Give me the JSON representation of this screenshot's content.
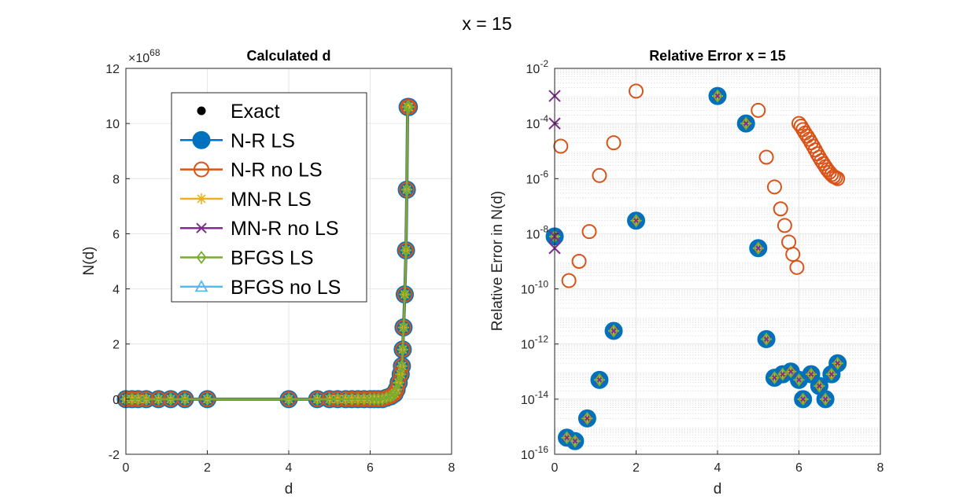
{
  "suptitle": "x = 15",
  "legend": {
    "placement": "top-left inside left plot",
    "entries": [
      "Exact",
      "N-R LS",
      "N-R no LS",
      "MN-R LS",
      "MN-R no LS",
      "BFGS LS",
      "BFGS no LS"
    ]
  },
  "colors": {
    "exact": "#000000",
    "nr_ls": "#0072BD",
    "nr_nols": "#D95319",
    "mnr_ls": "#EDB120",
    "mnr_nols": "#7E2F8E",
    "bfgs_ls": "#77AC30",
    "bfgs_nols": "#4DBEEE",
    "grid": "#e6e6e6",
    "axes": "#262626"
  },
  "chart_data": [
    {
      "type": "line",
      "title": "Calculated d",
      "xlabel": "d",
      "ylabel": "N(d)",
      "exponent_label": "×10",
      "exponent_power": "68",
      "xlim": [
        0,
        8
      ],
      "ylim": [
        -2,
        12
      ],
      "xticks": [
        0,
        2,
        4,
        6,
        8
      ],
      "yticks": [
        -2,
        0,
        2,
        4,
        6,
        8,
        10,
        12
      ],
      "grid": true,
      "x": [
        0,
        0.15,
        0.3,
        0.5,
        0.8,
        1.1,
        1.45,
        2,
        4,
        4.7,
        5,
        5.2,
        5.4,
        5.55,
        5.7,
        5.85,
        6,
        6.1,
        6.2,
        6.3,
        6.4,
        6.5,
        6.55,
        6.6,
        6.65,
        6.7,
        6.75,
        6.78,
        6.8,
        6.82,
        6.85,
        6.88,
        6.9,
        6.92,
        6.94,
        6.95
      ],
      "series": [
        {
          "name": "N-R LS",
          "y": [
            0,
            0,
            0,
            0,
            0,
            0,
            0,
            0,
            0,
            0,
            0,
            0,
            0,
            0,
            0,
            0,
            0,
            0,
            0,
            0,
            0.05,
            0.1,
            0.15,
            0.2,
            0.35,
            0.6,
            0.9,
            1.2,
            1.8,
            2.6,
            3.8,
            5.4,
            7.6,
            10.6,
            10.6,
            10.6
          ]
        },
        {
          "name": "N-R no LS",
          "y": [
            0,
            0,
            0,
            0,
            0,
            0,
            0,
            0,
            0,
            0,
            0,
            0,
            0,
            0,
            0,
            0,
            0,
            0,
            0,
            0,
            0.05,
            0.1,
            0.15,
            0.2,
            0.35,
            0.6,
            0.9,
            1.2,
            1.8,
            2.6,
            3.8,
            5.4,
            7.6,
            10.6,
            10.6,
            10.6
          ]
        },
        {
          "name": "BFGS LS",
          "y": [
            0,
            0,
            0,
            0,
            0,
            0,
            0,
            0,
            0,
            0,
            0,
            0,
            0,
            0,
            0,
            0,
            0,
            0,
            0,
            0,
            0.05,
            0.1,
            0.15,
            0.2,
            0.35,
            0.6,
            0.9,
            1.2,
            1.8,
            2.6,
            3.8,
            5.4,
            7.6,
            10.6,
            10.6,
            10.6
          ]
        }
      ]
    },
    {
      "type": "scatter",
      "title": "Relative Error x = 15",
      "xlabel": "d",
      "ylabel": "Relative Error in N(d)",
      "yscale": "log",
      "xlim": [
        0,
        8
      ],
      "ylim": [
        1e-16,
        0.01
      ],
      "xticks": [
        0,
        2,
        4,
        6,
        8
      ],
      "yticks": [
        "-16",
        "-14",
        "-12",
        "-10",
        "-8",
        "-6",
        "-4",
        "-2"
      ],
      "ytick_base": "10",
      "grid": true,
      "minor_grid": true,
      "series": [
        {
          "name": "N-R LS",
          "x": [
            0,
            0.3,
            0.5,
            0.8,
            1.1,
            1.45,
            2,
            4,
            4.7,
            5,
            5.2,
            5.4,
            5.6,
            5.8,
            6,
            6.1,
            6.3,
            6.5,
            6.65,
            6.8,
            6.95
          ],
          "y": [
            8e-09,
            4e-16,
            3e-16,
            2e-15,
            5e-14,
            3e-12,
            3e-08,
            0.001,
            0.0001,
            3e-09,
            1.5e-12,
            6e-14,
            8e-14,
            1e-13,
            5e-14,
            1e-14,
            8e-14,
            3e-14,
            1e-14,
            8e-14,
            2e-13
          ]
        },
        {
          "name": "N-R no LS",
          "x": [
            0.15,
            0.35,
            0.6,
            0.85,
            1.1,
            1.45,
            2,
            5,
            5.2,
            5.4,
            5.55,
            5.65,
            5.75,
            5.85,
            5.95,
            6,
            6.05,
            6.1,
            6.15,
            6.2,
            6.25,
            6.3,
            6.35,
            6.4,
            6.45,
            6.5,
            6.55,
            6.6,
            6.65,
            6.7,
            6.75,
            6.8,
            6.85,
            6.9,
            6.95
          ],
          "y": [
            1.5e-05,
            2e-10,
            1e-09,
            1.2e-08,
            1.3e-06,
            2e-05,
            0.0015,
            0.0003,
            6e-06,
            5e-07,
            8e-08,
            2e-08,
            5e-09,
            1.8e-09,
            6e-10,
            0.0001,
            8e-05,
            6e-05,
            4.5e-05,
            3.5e-05,
            2.7e-05,
            2e-05,
            1.5e-05,
            1.1e-05,
            8e-06,
            6e-06,
            4.5e-06,
            3.5e-06,
            2.7e-06,
            2.1e-06,
            1.7e-06,
            1.4e-06,
            1.2e-06,
            1.1e-06,
            1e-06
          ]
        },
        {
          "name": "MN-R no LS",
          "x": [
            0,
            0,
            0,
            0
          ],
          "y": [
            0.001,
            0.0001,
            8e-09,
            3e-09
          ]
        }
      ]
    }
  ]
}
